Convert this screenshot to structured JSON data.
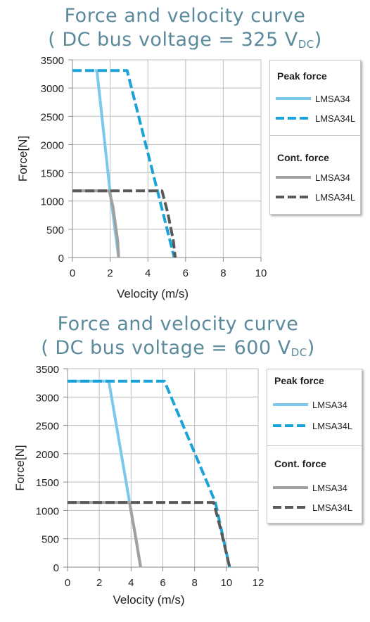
{
  "chart_data": [
    {
      "type": "line",
      "title_line1": "Force and velocity curve",
      "title_line2_pre": "( DC bus voltage = 325 V",
      "title_line2_sub": "DC",
      "title_line2_post": ")",
      "xlabel": "Velocity (m/s)",
      "ylabel": "Force[N]",
      "xlim": [
        0,
        10
      ],
      "ylim": [
        0,
        3500
      ],
      "xticks": [
        0,
        2,
        4,
        6,
        8,
        10
      ],
      "yticks": [
        0,
        500,
        1000,
        1500,
        2000,
        2500,
        3000,
        3500
      ],
      "grid": true,
      "legend_position": "right",
      "legend": {
        "peak_title": "Peak force",
        "cont_title": "Cont. force"
      },
      "series": [
        {
          "name": "LMSA34",
          "group": "peak",
          "color": "#7cc8ea",
          "dash": "solid",
          "x": [
            1.2,
            1.3,
            2.0,
            2.45
          ],
          "y": [
            3310,
            3310,
            1150,
            0
          ]
        },
        {
          "name": "LMSA34L",
          "group": "peak",
          "color": "#1ba3d9",
          "dash": "dashed",
          "x": [
            0,
            2.9,
            5.4
          ],
          "y": [
            3310,
            3310,
            0
          ]
        },
        {
          "name": "LMSA34",
          "group": "cont",
          "color": "#a0a0a0",
          "dash": "solid",
          "x": [
            0,
            1.95,
            2.15,
            2.4,
            2.45
          ],
          "y": [
            1180,
            1180,
            900,
            300,
            0
          ]
        },
        {
          "name": "LMSA34L",
          "group": "cont",
          "color": "#595959",
          "dash": "dashed",
          "x": [
            0,
            4.75,
            5.05,
            5.35,
            5.45
          ],
          "y": [
            1180,
            1180,
            800,
            300,
            0
          ]
        }
      ]
    },
    {
      "type": "line",
      "title_line1": "Force and velocity curve",
      "title_line2_pre": "( DC bus voltage = 600 V",
      "title_line2_sub": "DC",
      "title_line2_post": ")",
      "xlabel": "Velocity (m/s)",
      "ylabel": "Force[N]",
      "xlim": [
        0,
        12
      ],
      "ylim": [
        0,
        3500
      ],
      "xticks": [
        0,
        2,
        4,
        6,
        8,
        10,
        12
      ],
      "yticks": [
        0,
        500,
        1000,
        1500,
        2000,
        2500,
        3000,
        3500
      ],
      "grid": true,
      "legend_position": "right",
      "legend": {
        "peak_title": "Peak force",
        "cont_title": "Cont. force"
      },
      "series": [
        {
          "name": "LMSA34",
          "group": "peak",
          "color": "#7cc8ea",
          "dash": "solid",
          "x": [
            0,
            2.6,
            3.9,
            4.6
          ],
          "y": [
            3280,
            3280,
            1150,
            0
          ]
        },
        {
          "name": "LMSA34L",
          "group": "peak",
          "color": "#1ba3d9",
          "dash": "dashed",
          "x": [
            0,
            6.1,
            9.3,
            10.2
          ],
          "y": [
            3280,
            3280,
            1150,
            0
          ]
        },
        {
          "name": "LMSA34",
          "group": "cont",
          "color": "#a0a0a0",
          "dash": "solid",
          "x": [
            0,
            3.9,
            4.25,
            4.6
          ],
          "y": [
            1140,
            1140,
            600,
            0
          ]
        },
        {
          "name": "LMSA34L",
          "group": "cont",
          "color": "#595959",
          "dash": "dashed",
          "x": [
            0,
            9.2,
            9.7,
            10.2
          ],
          "y": [
            1140,
            1140,
            600,
            0
          ]
        }
      ]
    }
  ]
}
